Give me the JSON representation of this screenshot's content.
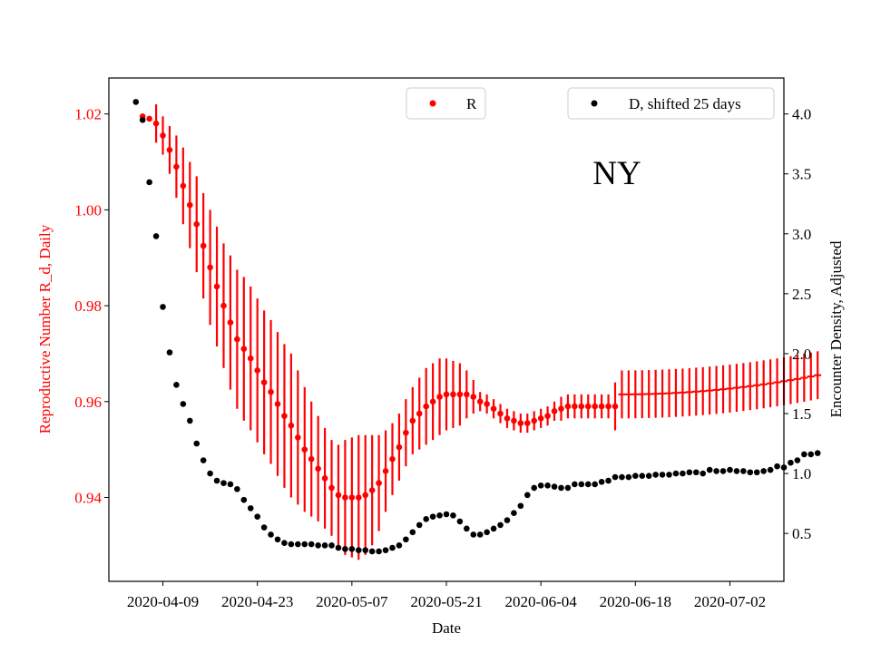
{
  "chart_data": {
    "type": "scatter",
    "annotation": "NY",
    "xlabel": "Date",
    "ylabel_left": "Reproductive Number R_d, Daily",
    "ylabel_right": "Encounter Density, Adjusted",
    "x_ticks": [
      "2020-04-09",
      "2020-04-23",
      "2020-05-07",
      "2020-05-21",
      "2020-06-04",
      "2020-06-18",
      "2020-07-02"
    ],
    "xlim": [
      "2020-04-01",
      "2020-07-10"
    ],
    "ylim_left": [
      0.9225,
      1.0275
    ],
    "ylim_right": [
      0.1,
      4.3
    ],
    "left_ticks": [
      0.94,
      0.96,
      0.98,
      1.0,
      1.02
    ],
    "left_tick_labels": [
      "0.94",
      "0.96",
      "0.98",
      "1.00",
      "1.02"
    ],
    "right_ticks": [
      0.5,
      1.0,
      1.5,
      2.0,
      2.5,
      3.0,
      3.5,
      4.0
    ],
    "right_tick_labels": [
      "0.5",
      "1.0",
      "1.5",
      "2.0",
      "2.5",
      "3.0",
      "3.5",
      "4.0"
    ],
    "legends": [
      {
        "label": "R",
        "color": "#ff0000",
        "placement": "top-center"
      },
      {
        "label": "D, shifted 25 days",
        "color": "#000000",
        "placement": "top-right"
      }
    ],
    "colors": {
      "R": "#ff0000",
      "D": "#000000"
    },
    "series": [
      {
        "name": "R",
        "axis": "left",
        "start_date": "2020-04-06",
        "y": [
          1.0195,
          1.019,
          1.018,
          1.0155,
          1.0125,
          1.009,
          1.005,
          1.001,
          0.997,
          0.9925,
          0.988,
          0.984,
          0.98,
          0.9765,
          0.973,
          0.971,
          0.969,
          0.9665,
          0.964,
          0.962,
          0.9595,
          0.957,
          0.955,
          0.9525,
          0.95,
          0.948,
          0.946,
          0.944,
          0.942,
          0.9405,
          0.94,
          0.94,
          0.94,
          0.9405,
          0.9415,
          0.943,
          0.9455,
          0.948,
          0.9505,
          0.9535,
          0.956,
          0.9575,
          0.959,
          0.96,
          0.961,
          0.9615,
          0.9615,
          0.9615,
          0.9615,
          0.961,
          0.96,
          0.9595,
          0.9585,
          0.9575,
          0.9565,
          0.956,
          0.9555,
          0.9555,
          0.956,
          0.9565,
          0.957,
          0.958,
          0.9585,
          0.959,
          0.959,
          0.959,
          0.959,
          0.959,
          0.959,
          0.959,
          0.959
        ],
        "err": [
          0.0,
          0.0,
          0.004,
          0.004,
          0.005,
          0.0065,
          0.008,
          0.009,
          0.01,
          0.011,
          0.012,
          0.0125,
          0.013,
          0.014,
          0.0145,
          0.015,
          0.015,
          0.015,
          0.015,
          0.015,
          0.015,
          0.015,
          0.015,
          0.014,
          0.013,
          0.012,
          0.011,
          0.0105,
          0.01,
          0.0105,
          0.012,
          0.0125,
          0.013,
          0.0125,
          0.0115,
          0.01,
          0.0085,
          0.0075,
          0.007,
          0.007,
          0.007,
          0.0075,
          0.008,
          0.008,
          0.008,
          0.0075,
          0.007,
          0.0065,
          0.005,
          0.0035,
          0.002,
          0.002,
          0.002,
          0.002,
          0.002,
          0.002,
          0.002,
          0.002,
          0.002,
          0.002,
          0.002,
          0.002,
          0.0025,
          0.0025,
          0.0025,
          0.0025,
          0.0025,
          0.0025,
          0.0025,
          0.0025,
          0.005
        ],
        "tail": {
          "y_start": 0.9615,
          "y_end": 0.9655,
          "err": 0.005
        }
      },
      {
        "name": "D, shifted 25 days",
        "axis": "right",
        "start_date": "2020-04-05",
        "y": [
          4.1,
          3.95,
          3.43,
          2.98,
          2.39,
          2.01,
          1.74,
          1.58,
          1.44,
          1.25,
          1.11,
          1.0,
          0.94,
          0.92,
          0.91,
          0.87,
          0.78,
          0.71,
          0.64,
          0.55,
          0.49,
          0.45,
          0.42,
          0.41,
          0.41,
          0.41,
          0.41,
          0.4,
          0.4,
          0.4,
          0.38,
          0.37,
          0.37,
          0.36,
          0.36,
          0.35,
          0.35,
          0.36,
          0.38,
          0.4,
          0.45,
          0.51,
          0.57,
          0.62,
          0.64,
          0.65,
          0.66,
          0.65,
          0.6,
          0.54,
          0.49,
          0.49,
          0.51,
          0.54,
          0.57,
          0.61,
          0.67,
          0.73,
          0.82,
          0.88,
          0.9,
          0.9,
          0.89,
          0.88,
          0.88,
          0.91,
          0.91,
          0.91,
          0.91,
          0.93,
          0.94,
          0.97,
          0.97,
          0.97,
          0.98,
          0.98,
          0.98,
          0.99,
          0.99,
          0.99,
          1.0,
          1.0,
          1.01,
          1.01,
          1.0,
          1.03,
          1.02,
          1.02,
          1.03,
          1.02,
          1.02,
          1.01,
          1.01,
          1.02,
          1.03,
          1.06,
          1.05,
          1.09,
          1.11,
          1.16,
          1.16,
          1.17
        ]
      }
    ]
  }
}
